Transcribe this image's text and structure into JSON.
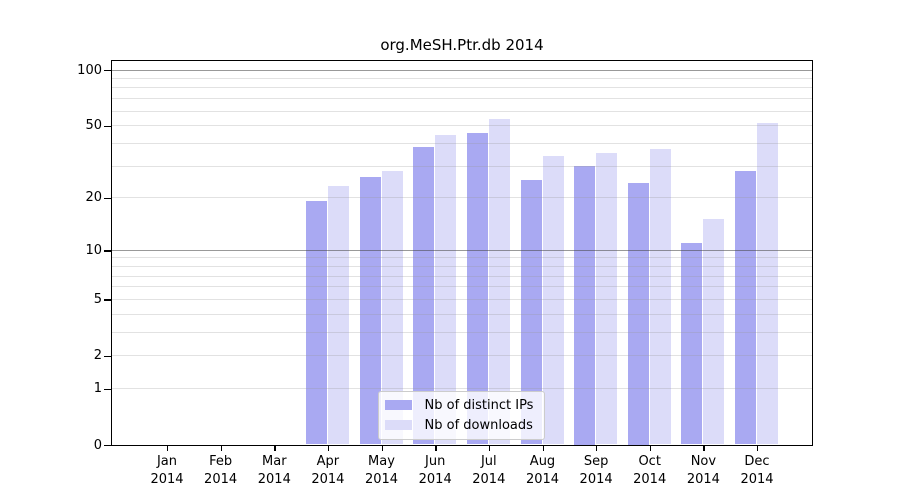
{
  "chart_data": {
    "type": "bar",
    "title": "org.MeSH.Ptr.db 2014",
    "categories": [
      "Jan",
      "Feb",
      "Mar",
      "Apr",
      "May",
      "Jun",
      "Jul",
      "Aug",
      "Sep",
      "Oct",
      "Nov",
      "Dec"
    ],
    "category_year": "2014",
    "series": [
      {
        "name": "Nb of distinct IPs",
        "color": "#a9a9f2",
        "values": [
          0,
          0,
          0,
          19,
          26,
          38,
          45,
          25,
          30,
          24,
          11,
          28
        ]
      },
      {
        "name": "Nb of downloads",
        "color": "#dcdcf9",
        "values": [
          0,
          0,
          0,
          23,
          28,
          44,
          54,
          34,
          35,
          37,
          15,
          51
        ]
      }
    ],
    "xlabel": "",
    "ylabel": "",
    "y_scale": "log1p",
    "ylim": [
      0,
      113
    ],
    "y_ticks": [
      100,
      50,
      20,
      10,
      5,
      2,
      1,
      0
    ],
    "gridlines": {
      "minor": [
        1,
        2,
        3,
        4,
        5,
        6,
        7,
        8,
        9,
        20,
        30,
        40,
        50,
        60,
        70,
        80,
        90
      ],
      "major": [
        10,
        100
      ],
      "minor_color": "rgba(150,150,150,0.28)",
      "major_color": "rgba(70,70,70,0.55)"
    },
    "legend_position": "bottom-center-inside",
    "grid": true
  }
}
